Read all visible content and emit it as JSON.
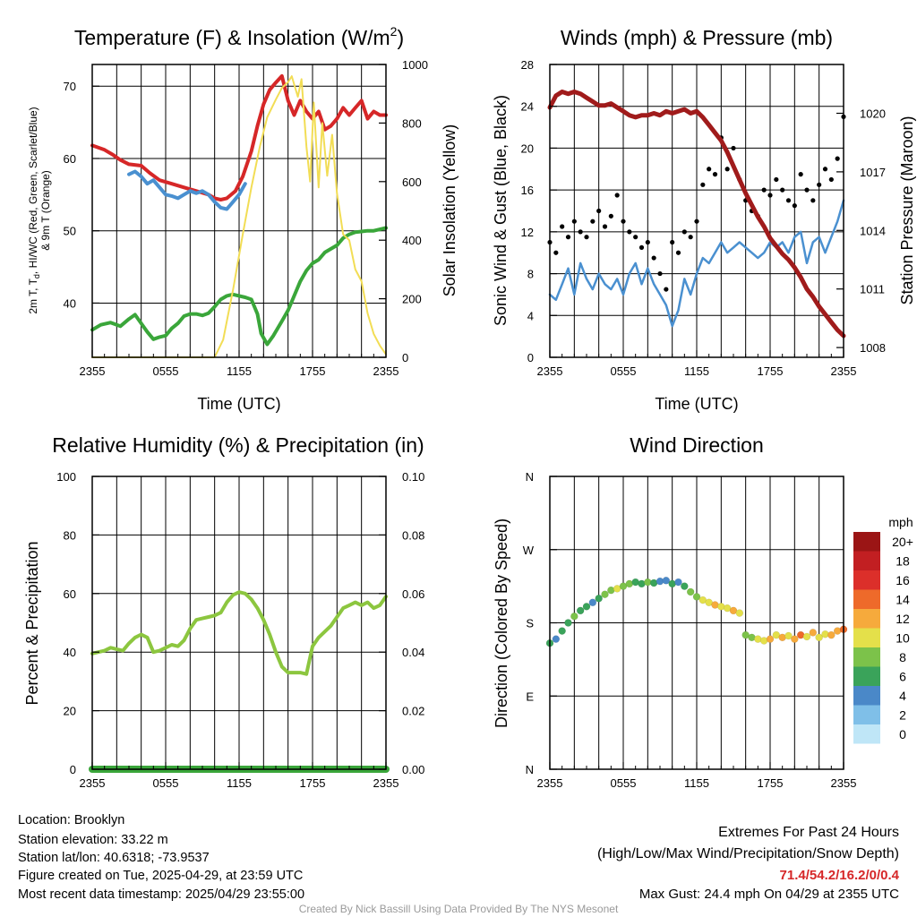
{
  "panels": [
    {
      "id": "temp",
      "title": "Temperature (F) & Insolation (W/m",
      "title_sup": "2",
      "title_end": ")",
      "xlabel": "Time (UTC)",
      "ylabel_left_1": "2m T, T",
      "ylabel_left_1_sub": "d",
      "ylabel_left_1_end": ", HI/WC (Red, Green, Scarlet/Blue)",
      "ylabel_left_2": "& 9m T (Orange)",
      "ylabel_right": "Solar Insolation (Yellow)"
    },
    {
      "id": "wind",
      "title": "Winds (mph) & Pressure (mb)",
      "xlabel": "Time (UTC)",
      "ylabel_left": "Sonic Wind & Gust (Blue, Black)",
      "ylabel_right": "Station Pressure (Maroon)"
    },
    {
      "id": "rh",
      "title": "Relative Humidity (%) & Precipitation (in)",
      "ylabel_left": "Percent & Precipitation"
    },
    {
      "id": "dir",
      "title": "Wind Direction",
      "ylabel_left": "Direction (Colored By Speed)",
      "colorbar_title": "mph"
    }
  ],
  "chart_data": [
    {
      "type": "line",
      "title": "Temperature (F) & Insolation (W/m2)",
      "xlabel": "Time (UTC)",
      "x_ticks": [
        "2355",
        "0555",
        "1155",
        "1755",
        "2355"
      ],
      "xlim_hours": [
        0,
        24
      ],
      "ylim_left": [
        32.5,
        73
      ],
      "yticks_left": [
        40,
        50,
        60,
        70
      ],
      "ylim_right": [
        0,
        1000
      ],
      "yticks_right": [
        0,
        200,
        400,
        600,
        800,
        1000
      ],
      "series": [
        {
          "name": "2m T",
          "color": "#d62728",
          "axis": "left",
          "x": [
            0,
            1,
            1.7,
            2.3,
            3,
            4,
            4.7,
            5.5,
            6.5,
            7.5,
            8.5,
            9.5,
            10,
            10.5,
            11,
            11.7,
            12.3,
            13,
            13.5,
            14,
            14.5,
            15,
            15.5,
            16,
            16.5,
            17,
            17.5,
            18,
            18.5,
            19,
            19.5,
            20,
            20.5,
            21,
            21.5,
            22,
            22.5,
            23,
            23.5,
            24
          ],
          "y": [
            61.8,
            61.2,
            60.5,
            59.8,
            59.2,
            59.0,
            58.0,
            57.0,
            56.5,
            56.0,
            55.5,
            55.0,
            54.5,
            54.3,
            54.5,
            55.5,
            57.5,
            61.0,
            64.5,
            67.5,
            69.5,
            70.5,
            71.4,
            68.0,
            66.0,
            68.0,
            66.5,
            65.5,
            66.5,
            64.0,
            64.5,
            65.5,
            67.0,
            66.0,
            67.0,
            68.0,
            65.5,
            66.5,
            66.0,
            66.0
          ]
        },
        {
          "name": "HI/WC",
          "color": "#4a90d0",
          "axis": "left",
          "x": [
            3,
            3.5,
            4,
            4.5,
            5,
            5.5,
            6,
            6.5,
            7,
            7.5,
            8,
            8.5,
            9,
            9.5,
            10,
            10.5,
            11,
            11.5,
            12,
            12.5
          ],
          "y": [
            57.8,
            58.2,
            57.5,
            56.5,
            57.0,
            56.0,
            55.0,
            54.8,
            54.5,
            55.0,
            55.5,
            55.2,
            55.5,
            55.0,
            54.0,
            53.2,
            53.0,
            54.0,
            55.0,
            56.5
          ]
        },
        {
          "name": "Td",
          "color": "#3aa63a",
          "axis": "left",
          "x": [
            0,
            0.7,
            1.5,
            2.3,
            3,
            3.5,
            4,
            4.5,
            5,
            5.5,
            6,
            6.5,
            7,
            7.5,
            8,
            8.5,
            9,
            9.5,
            10,
            10.5,
            11,
            11.5,
            12,
            12.5,
            13,
            13.5,
            13.8,
            14.3,
            14.8,
            15.5,
            16,
            16.5,
            17,
            17.5,
            18,
            18.5,
            19,
            19.5,
            20,
            20.5,
            21,
            21.5,
            22,
            22.5,
            23,
            23.5,
            24
          ],
          "y": [
            36.3,
            37.0,
            37.3,
            36.8,
            37.8,
            38.4,
            37.2,
            36.0,
            35.0,
            35.3,
            35.5,
            36.5,
            37.2,
            38.2,
            38.5,
            38.5,
            38.3,
            38.6,
            39.5,
            40.5,
            41.0,
            41.2,
            41.0,
            40.8,
            40.5,
            38.5,
            35.8,
            34.3,
            35.5,
            37.5,
            39.0,
            41.0,
            43.0,
            44.5,
            45.5,
            46.0,
            47.0,
            47.5,
            48.0,
            49.0,
            49.5,
            49.8,
            49.9,
            50.0,
            50.0,
            50.2,
            50.4
          ]
        },
        {
          "name": "Insolation",
          "color": "#f2dd55",
          "axis": "right",
          "x": [
            0,
            10,
            10.7,
            11.5,
            12.3,
            13,
            13.7,
            14.3,
            15,
            15.5,
            16,
            16.3,
            16.8,
            17.1,
            17.5,
            17.8,
            18.1,
            18.5,
            18.8,
            19.2,
            19.6,
            20,
            20.5,
            21,
            21.5,
            22,
            22.5,
            23,
            23.5,
            24
          ],
          "y": [
            0,
            0,
            60,
            230,
            420,
            580,
            720,
            820,
            880,
            920,
            940,
            960,
            890,
            950,
            720,
            600,
            870,
            580,
            800,
            620,
            760,
            560,
            420,
            400,
            300,
            260,
            150,
            80,
            40,
            10
          ]
        }
      ]
    },
    {
      "type": "line",
      "title": "Winds (mph) & Pressure (mb)",
      "xlabel": "Time (UTC)",
      "x_ticks": [
        "2355",
        "0555",
        "1155",
        "1755",
        "2355"
      ],
      "xlim_hours": [
        0,
        24
      ],
      "ylim_left": [
        0,
        28
      ],
      "yticks_left": [
        0,
        4,
        8,
        12,
        16,
        20,
        24,
        28
      ],
      "ylim_right": [
        1007.5,
        1022.5
      ],
      "yticks_right": [
        1008,
        1011,
        1014,
        1017,
        1020
      ],
      "series": [
        {
          "name": "Sonic Wind",
          "color": "#4a90d0",
          "axis": "left",
          "x": [
            0,
            0.5,
            1,
            1.5,
            2,
            2.5,
            3,
            3.5,
            4,
            4.5,
            5,
            5.5,
            6,
            6.5,
            7,
            7.5,
            8,
            8.5,
            9,
            9.5,
            10,
            10.5,
            11,
            11.5,
            12,
            12.5,
            13,
            13.5,
            14,
            14.5,
            15,
            15.5,
            16,
            16.5,
            17,
            17.5,
            18,
            18.5,
            19,
            19.5,
            20,
            20.5,
            21,
            21.5,
            22,
            22.5,
            23,
            23.5,
            24
          ],
          "y": [
            6,
            5.5,
            7,
            8.5,
            6,
            9,
            7.5,
            6.5,
            8,
            7,
            6.5,
            7.5,
            6,
            8,
            9,
            7,
            8.5,
            7,
            6,
            5,
            3,
            4.5,
            7.5,
            6,
            8,
            9.5,
            9,
            10,
            11,
            10,
            10.5,
            11,
            10.5,
            10,
            9.5,
            10,
            11,
            10.5,
            11,
            10,
            11.5,
            12,
            9,
            11,
            11.5,
            10,
            11.5,
            13,
            15
          ]
        },
        {
          "name": "Gust",
          "color": "#000000",
          "axis": "left",
          "x": [
            0,
            0.5,
            1,
            1.5,
            2,
            2.5,
            3,
            3.5,
            4,
            4.5,
            5,
            5.5,
            6,
            6.5,
            7,
            7.5,
            8,
            8.5,
            9,
            9.5,
            10,
            10.5,
            11,
            11.5,
            12,
            12.5,
            13,
            13.5,
            14,
            14.5,
            15,
            15.5,
            16,
            16.5,
            17,
            17.5,
            18,
            18.5,
            19,
            19.5,
            20,
            20.5,
            21,
            21.5,
            22,
            22.5,
            23,
            23.5,
            24
          ],
          "y": [
            11,
            10,
            12.5,
            11.5,
            13,
            12,
            11.5,
            13,
            14,
            12.5,
            13.5,
            15.5,
            13,
            12,
            11.5,
            10.5,
            11,
            9.5,
            8,
            6.5,
            11,
            10,
            12,
            11.5,
            13,
            16.5,
            18,
            17.5,
            21,
            18,
            20,
            17,
            15,
            14,
            13.5,
            16,
            15.5,
            17,
            16,
            15,
            14.5,
            17.5,
            16,
            15,
            16.5,
            18,
            17,
            19,
            23
          ]
        },
        {
          "name": "Station Pressure",
          "color": "#a01b1b",
          "axis": "right",
          "x": [
            0,
            0.5,
            1,
            1.5,
            2,
            2.5,
            3,
            3.5,
            4,
            4.5,
            5,
            5.5,
            6,
            6.5,
            7,
            7.5,
            8,
            8.5,
            9,
            9.5,
            10,
            10.5,
            11,
            11.5,
            12,
            12.5,
            13,
            13.5,
            14,
            14.5,
            15,
            15.5,
            16,
            16.5,
            17,
            17.5,
            18,
            18.5,
            19,
            19.5,
            20,
            20.5,
            21,
            21.5,
            22,
            22.5,
            23,
            23.5,
            24
          ],
          "y": [
            1020.3,
            1020.9,
            1021.1,
            1021.0,
            1021.1,
            1021.0,
            1020.8,
            1020.6,
            1020.4,
            1020.4,
            1020.5,
            1020.3,
            1020.1,
            1019.9,
            1019.8,
            1019.9,
            1019.9,
            1020.0,
            1019.9,
            1020.1,
            1020.0,
            1020.1,
            1020.2,
            1020.0,
            1020.1,
            1019.8,
            1019.4,
            1019.0,
            1018.6,
            1018.0,
            1017.3,
            1016.6,
            1015.9,
            1015.3,
            1014.7,
            1014.2,
            1013.6,
            1013.2,
            1012.8,
            1012.5,
            1012.1,
            1011.6,
            1011.0,
            1010.6,
            1010.1,
            1009.7,
            1009.3,
            1008.9,
            1008.6
          ]
        }
      ]
    },
    {
      "type": "line",
      "title": "Relative Humidity (%) & Precipitation (in)",
      "ylabel": "Percent & Precipitation",
      "x_ticks": [
        "2355",
        "0555",
        "1155",
        "1755",
        "2355"
      ],
      "xlim_hours": [
        0,
        24
      ],
      "ylim_left": [
        0,
        100
      ],
      "yticks_left": [
        0,
        20,
        40,
        60,
        80,
        100
      ],
      "ylim_right": [
        0,
        0.1
      ],
      "yticks_right": [
        "0.00",
        "0.02",
        "0.04",
        "0.06",
        "0.08",
        "0.10"
      ],
      "series": [
        {
          "name": "Relative Humidity",
          "color": "#8cc63f",
          "axis": "left",
          "x": [
            0,
            0.5,
            1,
            1.5,
            2,
            2.5,
            3,
            3.5,
            4,
            4.5,
            5,
            5.5,
            6,
            6.5,
            7,
            7.5,
            8,
            8.5,
            9,
            9.5,
            10,
            10.5,
            11,
            11.5,
            12,
            12.5,
            13,
            13.5,
            14,
            14.5,
            15,
            15.5,
            16,
            16.5,
            17,
            17.5,
            18,
            18.5,
            19,
            19.5,
            20,
            20.5,
            21,
            21.5,
            22,
            22.5,
            23,
            23.5,
            24
          ],
          "y": [
            39.5,
            40,
            40.5,
            41.5,
            41,
            40.5,
            43,
            45,
            46,
            45,
            40,
            40.5,
            41.5,
            42.5,
            42,
            44,
            48,
            51,
            51.5,
            52,
            52.5,
            53.5,
            57,
            59.5,
            60.5,
            60,
            58,
            55,
            51,
            46,
            40,
            35,
            33,
            33,
            33,
            32.5,
            42,
            45,
            47,
            49,
            52,
            55,
            56,
            57,
            56,
            57,
            55,
            56,
            59
          ]
        },
        {
          "name": "Precipitation",
          "color": "#3aa63a",
          "axis": "right",
          "x": [
            0,
            24
          ],
          "y": [
            0,
            0
          ]
        }
      ]
    },
    {
      "type": "scatter",
      "title": "Wind Direction",
      "ylabel": "Direction (Colored By Speed)",
      "x_ticks": [
        "2355",
        "0555",
        "1155",
        "1755",
        "2355"
      ],
      "xlim_hours": [
        0,
        24
      ],
      "ylim_degrees": [
        0,
        360
      ],
      "yticks": [
        "N",
        "E",
        "S",
        "W",
        "N"
      ],
      "colorbar_title": "mph",
      "colorbar_labels": [
        "0",
        "2",
        "4",
        "6",
        "8",
        "10",
        "12",
        "14",
        "16",
        "18",
        "20+"
      ],
      "colorbar_colors": [
        "#bfe6f7",
        "#7fbfe8",
        "#4a88c8",
        "#3aa35a",
        "#7cc24a",
        "#e4e04a",
        "#f6aa3c",
        "#ee6a2a",
        "#dc2f2a",
        "#c21f22",
        "#9b1515"
      ],
      "points": {
        "x": [
          0,
          0.5,
          1,
          1.5,
          2,
          2.5,
          3,
          3.5,
          4,
          4.5,
          5,
          5.5,
          6,
          6.5,
          7,
          7.5,
          8,
          8.5,
          9,
          9.5,
          10,
          10.5,
          11,
          11.5,
          12,
          12.5,
          13,
          13.5,
          14,
          14.5,
          15,
          15.5,
          16,
          16.5,
          17,
          17.5,
          18,
          18.5,
          19,
          19.5,
          20,
          20.5,
          21,
          21.5,
          22,
          22.5,
          23,
          23.5,
          24
        ],
        "y": [
          155,
          160,
          170,
          180,
          188,
          195,
          200,
          205,
          210,
          215,
          220,
          222,
          225,
          228,
          230,
          228,
          230,
          229,
          231,
          232,
          228,
          230,
          225,
          218,
          212,
          208,
          205,
          202,
          200,
          198,
          195,
          192,
          165,
          162,
          160,
          158,
          160,
          165,
          162,
          164,
          160,
          165,
          163,
          168,
          162,
          166,
          165,
          170,
          172
        ],
        "speed": [
          6,
          5,
          7,
          6,
          8,
          7,
          6,
          5,
          7,
          9,
          8,
          10,
          8,
          9,
          7,
          6,
          8,
          7,
          5,
          4,
          6,
          5,
          7,
          8,
          9,
          10,
          11,
          12,
          11,
          10,
          12,
          10,
          9,
          8,
          10,
          11,
          12,
          10,
          13,
          11,
          12,
          14,
          11,
          12,
          10,
          11,
          12,
          13,
          15
        ]
      }
    }
  ],
  "info": {
    "location": "Location: Brooklyn",
    "elevation": "Station elevation: 33.22 m",
    "latlon": "Station lat/lon: 40.6318; -73.9537",
    "created": "Figure created on Tue, 2025-04-29, at 23:59 UTC",
    "recent": "Most recent data timestamp: 2025/04/29 23:55:00"
  },
  "extremes": {
    "heading": "Extremes For Past 24 Hours",
    "subheading": "(High/Low/Max Wind/Precipitation/Snow Depth)",
    "values": "71.4/54.2/16.2/0/0.4",
    "values_color": "#d62728",
    "gust": "Max Gust: 24.4 mph On 04/29 at 2355 UTC"
  },
  "credit": "Created By Nick Bassill Using Data Provided By The NYS Mesonet"
}
